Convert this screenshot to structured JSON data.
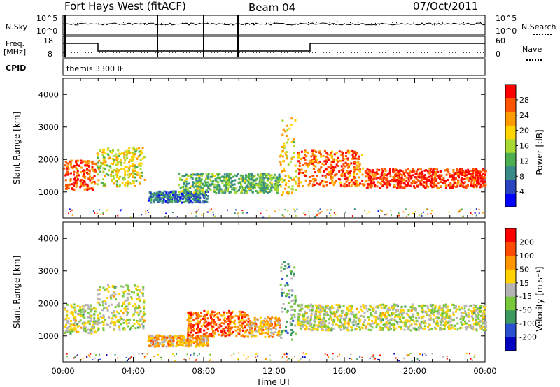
{
  "header": {
    "station": "Fort Hays West (fitACF)",
    "beam": "Beam 04",
    "date": "07/Oct/2011"
  },
  "params": {
    "nsky_label": "N.Sky",
    "nsearch_label": "N.Search",
    "freq_label_1": "Freq.",
    "freq_label_2": "[MHz]",
    "nave_label": "Nave",
    "cpid_label": "CPID",
    "cpid_value": "themis 3300 IF",
    "noise_ticks_left": [
      "10^5",
      "10^0"
    ],
    "noise_ticks_right": [
      "10^5",
      "10^0"
    ],
    "freq_ticks": [
      "18",
      "8"
    ],
    "nave_ticks": [
      "60",
      "0"
    ]
  },
  "colors": {
    "power_scale": [
      "#0000ff",
      "#2a45c0",
      "#3a8a8a",
      "#4caf50",
      "#a8d832",
      "#ffd400",
      "#ff9a00",
      "#ff5500",
      "#ff0000"
    ],
    "velocity_scale": [
      "#0000c0",
      "#2850d0",
      "#3a9a60",
      "#78c83c",
      "#b4b4b4",
      "#ffd200",
      "#ff9600",
      "#ff4b00",
      "#ff0000"
    ]
  },
  "chart_data": [
    {
      "type": "heatmap",
      "name": "power",
      "ylabel": "Slant Range [km]",
      "yticks": [
        "1000",
        "2000",
        "3000",
        "4000"
      ],
      "ylim": [
        200,
        4500
      ],
      "xlim": [
        0,
        24
      ],
      "colorbar_label": "Power [dB]",
      "colorbar_ticks": [
        "4",
        "8",
        "12",
        "16",
        "20",
        "24",
        "28"
      ],
      "bands": [
        {
          "t0": 0.0,
          "t1": 1.8,
          "r0": 1100,
          "r1": 2000,
          "level": 0.85
        },
        {
          "t0": 1.9,
          "t1": 4.6,
          "r0": 1200,
          "r1": 2400,
          "level": 0.55
        },
        {
          "t0": 4.8,
          "t1": 8.2,
          "r0": 700,
          "r1": 1050,
          "level": 0.25
        },
        {
          "t0": 6.5,
          "t1": 12.3,
          "r0": 1000,
          "r1": 1600,
          "level": 0.4
        },
        {
          "t0": 12.3,
          "t1": 13.2,
          "r0": 900,
          "r1": 3300,
          "level": 0.6
        },
        {
          "t0": 13.3,
          "t1": 17.0,
          "r0": 1200,
          "r1": 2300,
          "level": 0.8
        },
        {
          "t0": 17.0,
          "t1": 24.0,
          "r0": 1150,
          "r1": 1750,
          "level": 0.9
        }
      ]
    },
    {
      "type": "heatmap",
      "name": "velocity",
      "ylabel": "Slant Range [km]",
      "yticks": [
        "1000",
        "2000",
        "3000",
        "4000"
      ],
      "ylim": [
        200,
        4500
      ],
      "xlim": [
        0,
        24
      ],
      "xlabel": "Time UT",
      "xticks": [
        "00:00",
        "04:00",
        "08:00",
        "12:00",
        "16:00",
        "20:00",
        "00:00"
      ],
      "colorbar_label": "Velocity [m s⁻¹]",
      "colorbar_ticks": [
        "200",
        "100",
        "50",
        "15",
        "-15",
        "-50",
        "-100",
        "-200"
      ],
      "bands": [
        {
          "t0": 0.0,
          "t1": 1.8,
          "r0": 1100,
          "r1": 2000,
          "level": 0.5
        },
        {
          "t0": 1.9,
          "t1": 4.6,
          "r0": 1200,
          "r1": 2600,
          "level": 0.5
        },
        {
          "t0": 4.8,
          "t1": 8.2,
          "r0": 700,
          "r1": 1050,
          "level": 0.65
        },
        {
          "t0": 7.0,
          "t1": 10.5,
          "r0": 1000,
          "r1": 1800,
          "level": 0.8
        },
        {
          "t0": 10.5,
          "t1": 12.3,
          "r0": 1000,
          "r1": 1600,
          "level": 0.65
        },
        {
          "t0": 12.3,
          "t1": 13.2,
          "r0": 900,
          "r1": 3300,
          "level": 0.35
        },
        {
          "t0": 13.3,
          "t1": 24.0,
          "r0": 1200,
          "r1": 2000,
          "level": 0.5
        }
      ]
    }
  ]
}
